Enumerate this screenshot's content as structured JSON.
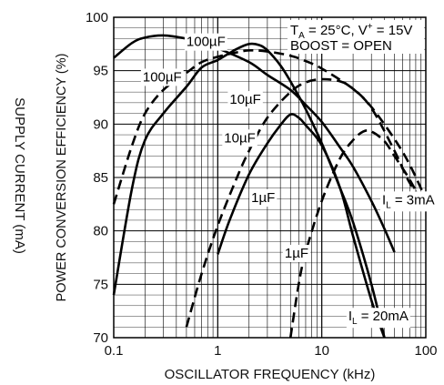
{
  "chart_data": {
    "type": "line",
    "xscale": "log",
    "xlim": [
      0.1,
      100
    ],
    "ylim": [
      70,
      100
    ],
    "xlabel": "OSCILLATOR FREQUENCY (kHz)",
    "ylabel": "POWER CONVERSION EFFICIENCY (%)",
    "secondary_ylabel": "SUPPLY CURRENT (mA)",
    "x_ticks": [
      "0.1",
      "1",
      "10",
      "100"
    ],
    "y_ticks": [
      "70",
      "75",
      "80",
      "85",
      "90",
      "95",
      "100"
    ],
    "grid": true,
    "conditions": [
      "T",
      "A",
      " = 25°C, V",
      "+",
      " = 15V",
      "BOOST = OPEN"
    ],
    "series": [
      {
        "name": "",
        "style": "solid",
        "annotation": "100µF",
        "load": "3mA",
        "points": [
          [
            0.1,
            96.2
          ],
          [
            0.15,
            97.6
          ],
          [
            0.2,
            98.1
          ],
          [
            0.3,
            98.3
          ],
          [
            0.5,
            98.0
          ],
          [
            0.7,
            97.6
          ],
          [
            1,
            97.1
          ],
          [
            2,
            95.8
          ],
          [
            3,
            94.6
          ],
          [
            5,
            93.2
          ],
          [
            7,
            91.8
          ],
          [
            10,
            90.2
          ],
          [
            15,
            87.8
          ],
          [
            20,
            86.0
          ],
          [
            30,
            82.8
          ],
          [
            40,
            80.2
          ],
          [
            50,
            78.0
          ]
        ]
      },
      {
        "name": "",
        "style": "dashed",
        "annotation": "100µF",
        "load": "20mA",
        "points": [
          [
            0.1,
            82.5
          ],
          [
            0.15,
            88.0
          ],
          [
            0.2,
            91.0
          ],
          [
            0.3,
            93.2
          ],
          [
            0.5,
            94.8
          ],
          [
            0.7,
            95.8
          ],
          [
            1,
            96.3
          ],
          [
            1.5,
            96.7
          ],
          [
            2,
            96.9
          ],
          [
            3,
            96.8
          ],
          [
            5,
            96.4
          ],
          [
            7,
            95.9
          ],
          [
            10,
            95.2
          ],
          [
            20,
            93.3
          ],
          [
            30,
            91.6
          ],
          [
            50,
            88.6
          ],
          [
            70,
            86.2
          ],
          [
            100,
            83.0
          ]
        ]
      },
      {
        "name": "",
        "style": "solid",
        "annotation": "10µF",
        "load": "3mA",
        "points": [
          [
            0.1,
            74.0
          ],
          [
            0.15,
            84.0
          ],
          [
            0.2,
            88.5
          ],
          [
            0.3,
            91.0
          ],
          [
            0.5,
            93.5
          ],
          [
            0.7,
            95.3
          ],
          [
            1,
            96.0
          ],
          [
            1.5,
            97.0
          ],
          [
            2,
            97.5
          ],
          [
            2.5,
            97.4
          ],
          [
            3,
            96.9
          ],
          [
            4,
            95.5
          ],
          [
            5,
            94.0
          ],
          [
            7,
            91.4
          ],
          [
            10,
            88.2
          ],
          [
            15,
            84.0
          ],
          [
            20,
            80.8
          ],
          [
            30,
            75.0
          ],
          [
            40,
            70.0
          ]
        ]
      },
      {
        "name": "",
        "style": "dashed",
        "annotation": "10µF",
        "load": "20mA",
        "points": [
          [
            0.5,
            71.0
          ],
          [
            0.7,
            76.0
          ],
          [
            1,
            80.5
          ],
          [
            1.5,
            84.8
          ],
          [
            2,
            87.5
          ],
          [
            3,
            90.6
          ],
          [
            5,
            93.0
          ],
          [
            7,
            93.9
          ],
          [
            10,
            94.2
          ],
          [
            15,
            94.0
          ],
          [
            20,
            93.3
          ],
          [
            30,
            91.5
          ],
          [
            50,
            87.5
          ],
          [
            70,
            84.5
          ],
          [
            100,
            82.5
          ]
        ]
      },
      {
        "name": "",
        "style": "solid",
        "annotation": "1µF",
        "load": "3mA",
        "points": [
          [
            1,
            77.8
          ],
          [
            1.3,
            81.0
          ],
          [
            2,
            85.3
          ],
          [
            3,
            88.2
          ],
          [
            4,
            89.9
          ],
          [
            5,
            90.9
          ],
          [
            6,
            90.6
          ],
          [
            7,
            89.9
          ],
          [
            10,
            88.0
          ],
          [
            15,
            84.0
          ],
          [
            20,
            79.5
          ],
          [
            30,
            73.5
          ],
          [
            40,
            70.0
          ]
        ]
      },
      {
        "name": "",
        "style": "dashed",
        "annotation": "1µF",
        "load": "20mA",
        "points": [
          [
            5,
            70.0
          ],
          [
            6,
            75.0
          ],
          [
            7,
            78.0
          ],
          [
            10,
            82.8
          ],
          [
            15,
            86.8
          ],
          [
            20,
            88.5
          ],
          [
            25,
            89.3
          ],
          [
            30,
            89.3
          ],
          [
            40,
            88.4
          ],
          [
            50,
            87.0
          ],
          [
            70,
            84.8
          ],
          [
            100,
            82.0
          ]
        ]
      }
    ],
    "annotations": [
      {
        "id": "lbl_100_solid",
        "text": "100µF",
        "x": 0.5,
        "y": 97.3
      },
      {
        "id": "lbl_100_dash",
        "text": "100µF",
        "x": 0.19,
        "y": 94.0
      },
      {
        "id": "lbl_10_solid",
        "text": "10µF",
        "x": 1.3,
        "y": 91.9
      },
      {
        "id": "lbl_10_dash",
        "text": "10µF",
        "x": 1.15,
        "y": 88.3
      },
      {
        "id": "lbl_1_solid",
        "text": "1µF",
        "x": 2.1,
        "y": 82.7
      },
      {
        "id": "lbl_1_dash",
        "text": "1µF",
        "x": 4.4,
        "y": 77.5
      },
      {
        "id": "lbl_il3",
        "parts": [
          "I",
          "L",
          " = 3mA"
        ],
        "x": 38,
        "y": 82.5
      },
      {
        "id": "lbl_il20",
        "parts": [
          "I",
          "L",
          " = 20mA"
        ],
        "x": 18,
        "y": 71.6
      }
    ]
  }
}
